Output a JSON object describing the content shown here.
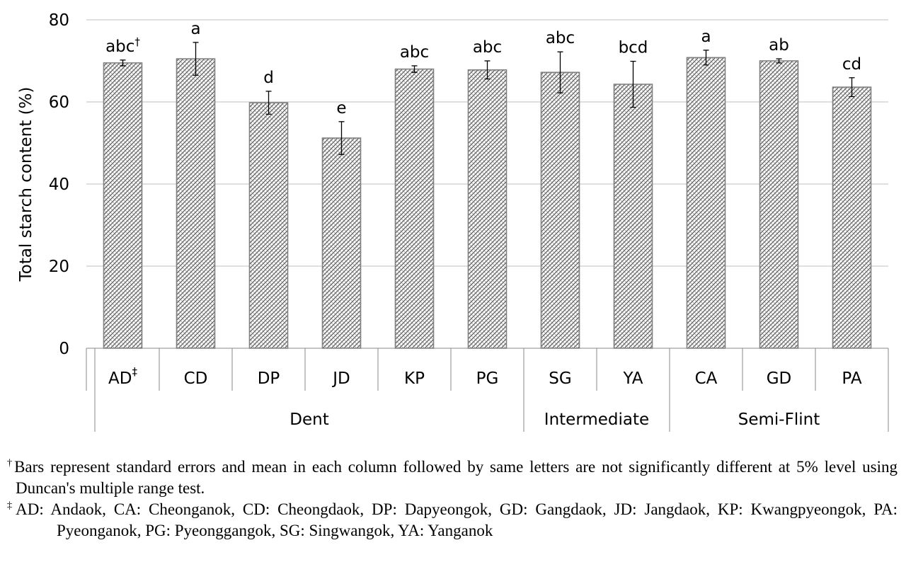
{
  "chart_data": {
    "type": "bar",
    "ylabel": "Total starch content (%)",
    "ylim": [
      0,
      80
    ],
    "yticks": [
      "0",
      "20",
      "40",
      "60",
      "80"
    ],
    "grid": true,
    "categories": [
      "AD",
      "CD",
      "DP",
      "JD",
      "KP",
      "PG",
      "SG",
      "YA",
      "CA",
      "GD",
      "PA"
    ],
    "first_category_mark": "‡",
    "values": [
      69.5,
      70.5,
      59.8,
      51.2,
      68.0,
      67.8,
      67.2,
      64.3,
      70.8,
      70.0,
      63.6
    ],
    "errors": [
      0.7,
      4.0,
      2.8,
      4.0,
      0.8,
      2.2,
      5.0,
      5.6,
      1.8,
      0.5,
      2.3
    ],
    "significance": [
      "abc",
      "a",
      "d",
      "e",
      "abc",
      "abc",
      "abc",
      "bcd",
      "a",
      "ab",
      "cd"
    ],
    "first_significance_mark": "†",
    "groups": [
      {
        "label": "Dent",
        "count": 6
      },
      {
        "label": "Intermediate",
        "count": 2
      },
      {
        "label": "Semi-Flint",
        "count": 3
      }
    ],
    "bar_color": "#bdbdbd",
    "grid_color": "#bfbfbf"
  },
  "footnotes": {
    "fn1_mark": "†",
    "fn1_text": "Bars represent standard errors and mean in each column followed by same letters are not significantly different at 5% level using Duncan's multiple range test.",
    "fn2_mark": "‡",
    "fn2_text": "AD: Andaok, CA: Cheonganok, CD: Cheongdaok, DP: Dapyeongok, GD: Gangdaok, JD: Jangdaok, KP: Kwangpyeongok, PA: Pyeonganok, PG: Pyeonggangok, SG: Singwangok, YA: Yanganok"
  }
}
